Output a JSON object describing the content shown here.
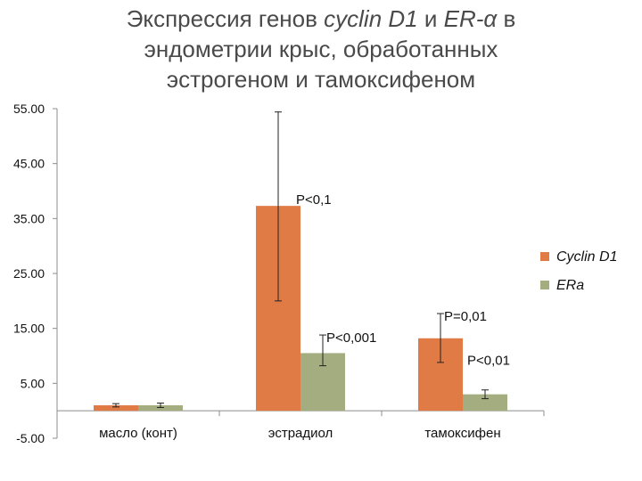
{
  "title": {
    "line1_prefix": "Экспрессия генов ",
    "gene1": "cyclin D1",
    "line1_mid": " и ",
    "gene2": "ER-α",
    "line1_suffix": " в",
    "line2": "эндометрии крыс, обработанных",
    "line3": "эстрогеном и тамоксифеном"
  },
  "chart_data": {
    "type": "bar",
    "title": "Экспрессия генов cyclin D1 и ER-α в эндометрии крыс, обработанных эстрогеном и тамоксифеном",
    "xlabel": "",
    "ylabel": "",
    "ylim": [
      -5,
      55
    ],
    "yticks": [
      -5,
      5,
      15,
      25,
      35,
      45,
      55
    ],
    "ytick_labels": [
      "-5.00",
      "5.00",
      "15.00",
      "25.00",
      "35.00",
      "45.00",
      "55.00"
    ],
    "categories": [
      "масло (конт)",
      "эстрадиол",
      "тамоксифен"
    ],
    "series": [
      {
        "name": "Cyclin D1",
        "color": "#e07b45",
        "values": [
          1.0,
          37.3,
          13.2
        ],
        "error_low": [
          0.7,
          20.0,
          8.8
        ],
        "error_high": [
          1.3,
          54.4,
          17.7
        ]
      },
      {
        "name": "ERa",
        "color": "#a3ad80",
        "values": [
          1.0,
          10.5,
          3.0
        ],
        "error_low": [
          0.6,
          8.2,
          2.2
        ],
        "error_high": [
          1.4,
          13.8,
          3.8
        ]
      }
    ],
    "annotations": [
      {
        "text": "P<0,1",
        "series": 0,
        "category": 1
      },
      {
        "text": "P<0,001",
        "series": 1,
        "category": 1
      },
      {
        "text": "P=0,01",
        "series": 0,
        "category": 2
      },
      {
        "text": "P<0,01",
        "series": 1,
        "category": 2
      }
    ],
    "legend_position": "right",
    "grid": false
  }
}
